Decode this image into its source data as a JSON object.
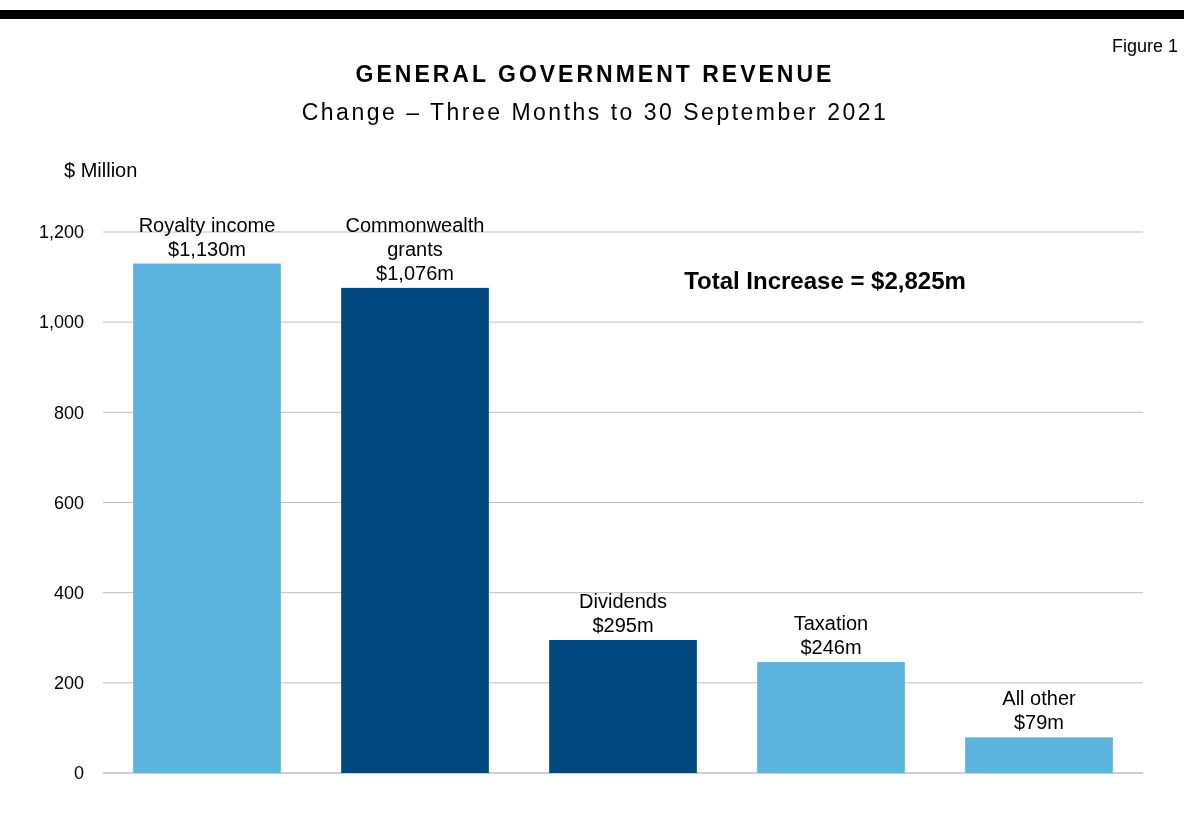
{
  "chart_data": {
    "type": "bar",
    "title": "GENERAL GOVERNMENT REVENUE",
    "subtitle": "Change – Three Months to 30 September 2021",
    "ylabel": "$ Million",
    "categories": [
      "Royalty income",
      "Commonwealth grants",
      "Dividends",
      "Taxation",
      "All other"
    ],
    "values": [
      1130,
      1076,
      295,
      246,
      79
    ],
    "colors": [
      "#5bb4de",
      "#00467f",
      "#00467f",
      "#5bb4de",
      "#5bb4de"
    ],
    "value_labels": [
      "$1,130m",
      "$1,076m",
      "$295m",
      "$246m",
      "$79m"
    ],
    "ylim": [
      0,
      1200
    ],
    "yticks": [
      0,
      200,
      400,
      600,
      800,
      {
        "value": 1000,
        "label": "1,000"
      },
      {
        "value": 1200,
        "label": "1,200"
      }
    ],
    "grid": "y",
    "annotations": [
      "Figure 1",
      "Total Increase = $2,825m"
    ]
  }
}
